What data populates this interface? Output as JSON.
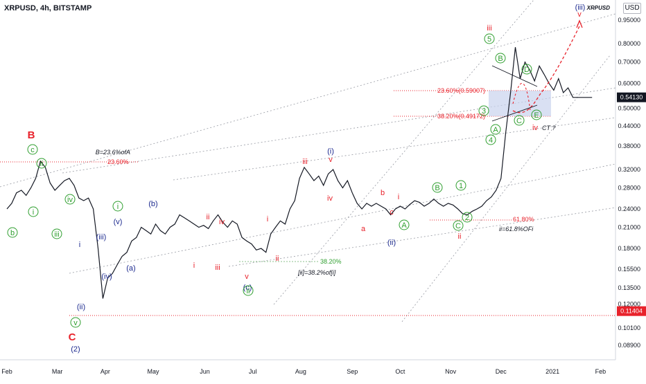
{
  "header": {
    "title": "XRPUSD, 4h, BITSTAMP",
    "currency": "USD",
    "symbol_tag": "XRPUSD"
  },
  "colors": {
    "red": "#e8222b",
    "navy": "#1c2a8f",
    "green": "#2e9e2e",
    "price_tag": "#131722",
    "last_tag": "#e8222b",
    "zone": "#c9d3ee"
  },
  "chart_data": {
    "type": "line",
    "yscale": "log",
    "ylim": [
      0.08,
      1.1
    ],
    "xlabels": [
      "Feb",
      "Mar",
      "Apr",
      "May",
      "Jun",
      "Jul",
      "Aug",
      "Sep",
      "Oct",
      "Nov",
      "Dec",
      "2021",
      "Feb"
    ],
    "ylabels": [
      "0.95000",
      "0.80000",
      "0.70000",
      "0.60000",
      "0.50000",
      "0.44000",
      "0.38000",
      "0.32000",
      "0.28000",
      "0.24000",
      "0.21000",
      "0.18000",
      "0.15500",
      "0.13500",
      "0.12000",
      "0.10100",
      "0.08900"
    ],
    "series": [
      {
        "x": [
          0,
          0.4,
          0.8,
          1.2,
          1.6,
          2.0,
          2.4,
          2.8,
          3.2,
          3.6,
          4.0,
          4.4,
          4.8,
          5.2,
          5.6,
          6.0,
          6.4,
          6.8,
          7.2,
          7.6,
          8.0,
          8.4,
          8.8,
          9.2,
          9.6,
          10.0,
          10.4,
          10.8,
          11.2,
          11.6,
          12.0,
          12.4,
          12.8,
          13.2,
          13.6,
          14.0,
          14.4,
          14.8,
          15.2,
          15.6,
          16.0,
          16.4,
          16.8,
          17.2,
          17.6,
          18.0,
          18.4,
          18.8,
          19.2,
          19.6,
          20.0,
          20.4,
          20.8,
          21.2,
          21.6,
          22.0,
          22.4,
          22.8,
          23.2,
          23.6,
          24.0,
          24.4,
          24.8,
          25.2,
          25.6,
          26.0,
          26.4,
          26.8,
          27.2,
          27.6,
          28.0,
          28.4,
          28.8,
          29.2,
          29.6,
          30.0,
          30.4,
          30.8,
          31.2,
          31.6,
          32.0,
          32.4,
          32.8,
          33.2,
          33.6,
          34.0,
          34.4,
          34.8,
          35.2,
          35.6,
          36.0,
          36.4,
          36.8,
          37.2,
          37.6,
          38.0,
          38.4,
          38.8,
          39.2,
          39.6,
          40.0,
          40.4,
          40.8,
          41.2,
          41.6,
          42.0,
          42.4,
          42.8,
          43.2,
          43.6,
          44.0,
          44.4,
          44.8,
          45.2,
          45.6,
          46.0,
          46.4,
          46.8,
          47.2,
          47.6,
          48.0,
          48.4,
          48.8
        ],
        "y": [
          0.24,
          0.25,
          0.27,
          0.275,
          0.265,
          0.28,
          0.3,
          0.34,
          0.325,
          0.29,
          0.275,
          0.285,
          0.295,
          0.3,
          0.285,
          0.26,
          0.255,
          0.26,
          0.24,
          0.18,
          0.125,
          0.145,
          0.15,
          0.16,
          0.17,
          0.175,
          0.19,
          0.195,
          0.21,
          0.205,
          0.2,
          0.215,
          0.205,
          0.2,
          0.21,
          0.215,
          0.23,
          0.225,
          0.22,
          0.215,
          0.21,
          0.213,
          0.208,
          0.22,
          0.23,
          0.218,
          0.21,
          0.22,
          0.215,
          0.195,
          0.19,
          0.186,
          0.178,
          0.18,
          0.175,
          0.2,
          0.21,
          0.22,
          0.215,
          0.24,
          0.255,
          0.3,
          0.325,
          0.31,
          0.295,
          0.305,
          0.285,
          0.31,
          0.32,
          0.295,
          0.28,
          0.295,
          0.27,
          0.25,
          0.24,
          0.25,
          0.245,
          0.25,
          0.245,
          0.24,
          0.23,
          0.24,
          0.245,
          0.24,
          0.248,
          0.255,
          0.252,
          0.245,
          0.25,
          0.258,
          0.25,
          0.245,
          0.25,
          0.247,
          0.24,
          0.232,
          0.23,
          0.236,
          0.24,
          0.245,
          0.255,
          0.262,
          0.275,
          0.3,
          0.42,
          0.56,
          0.78,
          0.62,
          0.7,
          0.66,
          0.61,
          0.68,
          0.64,
          0.6,
          0.57,
          0.62,
          0.56,
          0.58,
          0.541,
          0.541,
          0.541,
          0.541,
          0.541
        ]
      }
    ],
    "last_price": "0.54130",
    "level_price": "0.11404",
    "projection_target": "0.95000"
  },
  "annotations": {
    "fib_b": "B=23.6%ofA",
    "fib_b_pct": "23.60%",
    "fib_ii": "38.20%",
    "fib_ii_note": "[ii]=38.2%of[i]",
    "fib_2": "61.80%",
    "fib_2_note": "ii=61.8%OFi",
    "fib_236": "23.60%(0.59007)",
    "fib_382": "38.20%(0.49172)",
    "ct": "CT ?",
    "labels": [
      {
        "t": "B",
        "c": "red"
      },
      {
        "t": "c",
        "c": "green"
      },
      {
        "t": "ii",
        "c": "green"
      },
      {
        "t": "b",
        "c": "green"
      },
      {
        "t": "i",
        "c": "green"
      },
      {
        "t": "iii",
        "c": "green"
      },
      {
        "t": "iv",
        "c": "green"
      },
      {
        "t": "i",
        "c": "navy"
      },
      {
        "t": "(iii)",
        "c": "navy"
      },
      {
        "t": "(iv)",
        "c": "navy"
      },
      {
        "t": "(ii)",
        "c": "navy"
      },
      {
        "t": "v",
        "c": "green"
      },
      {
        "t": "C",
        "c": "red"
      },
      {
        "t": "(2)",
        "c": "navy"
      },
      {
        "t": "(v)",
        "c": "navy"
      },
      {
        "t": "i",
        "c": "green"
      },
      {
        "t": "(a)",
        "c": "navy"
      },
      {
        "t": "(b)",
        "c": "navy"
      },
      {
        "t": "ii",
        "c": "red"
      },
      {
        "t": "iv",
        "c": "red"
      },
      {
        "t": "i",
        "c": "red"
      },
      {
        "t": "iii",
        "c": "red"
      },
      {
        "t": "v",
        "c": "red"
      },
      {
        "t": "(c)",
        "c": "navy"
      },
      {
        "t": "ii",
        "c": "green"
      },
      {
        "t": "i",
        "c": "red"
      },
      {
        "t": "ii",
        "c": "red"
      },
      {
        "t": "iii",
        "c": "red"
      },
      {
        "t": "(i)",
        "c": "navy"
      },
      {
        "t": "v",
        "c": "red"
      },
      {
        "t": "iv",
        "c": "red"
      },
      {
        "t": "a",
        "c": "red"
      },
      {
        "t": "b",
        "c": "red"
      },
      {
        "t": "c",
        "c": "red"
      },
      {
        "t": "(ii)",
        "c": "navy"
      },
      {
        "t": "i",
        "c": "red"
      },
      {
        "t": "A",
        "c": "green"
      },
      {
        "t": "B",
        "c": "green"
      },
      {
        "t": "1",
        "c": "green"
      },
      {
        "t": "C",
        "c": "green"
      },
      {
        "t": "2",
        "c": "green"
      },
      {
        "t": "ii",
        "c": "red"
      },
      {
        "t": "iii",
        "c": "red"
      },
      {
        "t": "5",
        "c": "green"
      },
      {
        "t": "3",
        "c": "green"
      },
      {
        "t": "4",
        "c": "green"
      },
      {
        "t": "A",
        "c": "green"
      },
      {
        "t": "B",
        "c": "green"
      },
      {
        "t": "D",
        "c": "green"
      },
      {
        "t": "C",
        "c": "green"
      },
      {
        "t": "E",
        "c": "green"
      },
      {
        "t": "iv",
        "c": "red"
      },
      {
        "t": "v",
        "c": "red"
      },
      {
        "t": "(iii)",
        "c": "navy"
      }
    ]
  }
}
